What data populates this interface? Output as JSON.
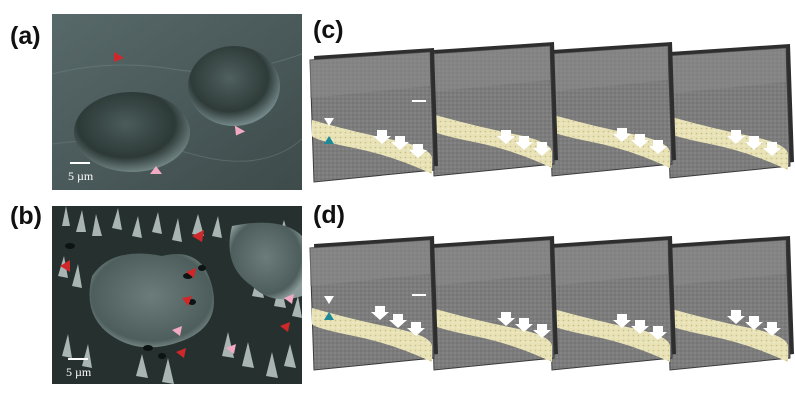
{
  "figure": {
    "panels": [
      {
        "label": "(a)",
        "scale_bar": "5 µm"
      },
      {
        "label": "(b)",
        "scale_bar": "5 µm"
      },
      {
        "label": "(c)"
      },
      {
        "label": "(d)"
      }
    ],
    "colors": {
      "red_arrow": "#d0282a",
      "pink_arrow": "#f2a9c2",
      "teal_marker": "#1e8a98",
      "white_arrow": "#ffffff",
      "panel_gray": "#7a7a7a",
      "tissue_band": "#e8e2b6"
    }
  }
}
